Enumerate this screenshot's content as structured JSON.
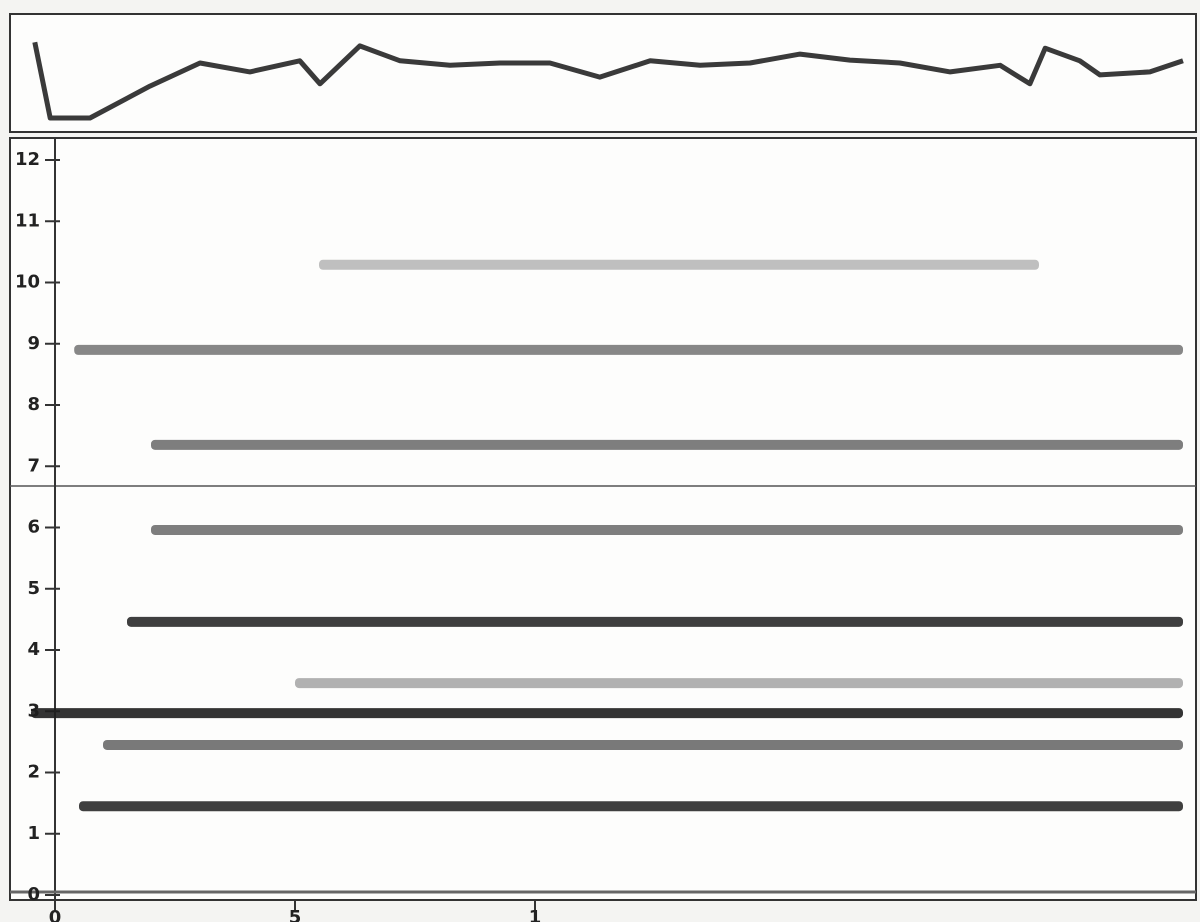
{
  "chart_data": {
    "type": "spectrogram",
    "xlim": [
      -0.5,
      23.5
    ],
    "xticks": [
      0,
      5,
      {
        "value": 10,
        "label": "1"
      }
    ],
    "ylim": [
      0,
      12.5
    ],
    "yticks": [
      0,
      1,
      2,
      3,
      4,
      5,
      6,
      7,
      8,
      9,
      10,
      11,
      12
    ],
    "amplitude": {
      "color": "#3a3a3a",
      "ylim": [
        0,
        10.5
      ],
      "x": [
        -0.42,
        -0.1,
        0.73,
        1.98,
        3.02,
        4.06,
        5.1,
        5.52,
        6.35,
        7.19,
        8.23,
        9.27,
        10.31,
        11.35,
        12.4,
        13.44,
        14.48,
        15.52,
        16.56,
        17.6,
        18.65,
        19.69,
        20.31,
        20.63,
        21.35,
        21.77,
        22.81,
        23.5
      ],
      "values": [
        10.2,
        0,
        0,
        4.3,
        7.4,
        6.2,
        7.7,
        4.6,
        9.7,
        7.7,
        7.1,
        7.4,
        7.4,
        5.5,
        7.7,
        7.1,
        7.4,
        8.6,
        7.8,
        7.4,
        6.2,
        7.1,
        4.6,
        9.4,
        7.7,
        5.8,
        6.2,
        7.7
      ]
    },
    "bands": [
      {
        "y": 1.45,
        "x": [
          0.5,
          23.5
        ],
        "color": "#2a2a2a"
      },
      {
        "y": 2.45,
        "x": [
          1,
          23.5
        ],
        "color": "#6a6a6a"
      },
      {
        "y": 2.97,
        "x": [
          -0.5,
          23.5
        ],
        "color": "#1e1e1e"
      },
      {
        "y": 3.46,
        "x": [
          5,
          23.5
        ],
        "color": "#a8a8a8"
      },
      {
        "y": 4.46,
        "x": [
          1.5,
          23.5
        ],
        "color": "#2a2a2a"
      },
      {
        "y": 5.96,
        "x": [
          2,
          23.5
        ],
        "color": "#707070"
      },
      {
        "y": 7.35,
        "x": [
          2,
          23.5
        ],
        "color": "#707070"
      },
      {
        "y": 8.9,
        "x": [
          0.4,
          23.5
        ],
        "color": "#7a7a7a"
      },
      {
        "y": 10.29,
        "x": [
          5.5,
          20.5
        ],
        "color": "#b8b8b8"
      }
    ]
  }
}
